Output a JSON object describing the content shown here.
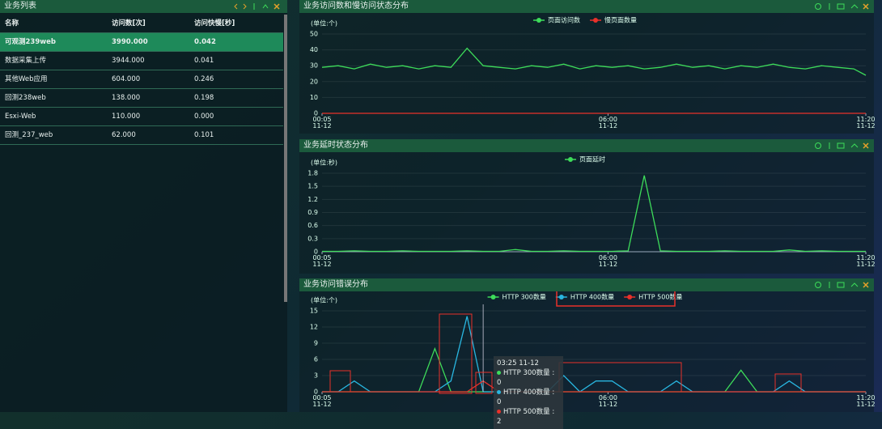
{
  "table": {
    "title": "业务列表",
    "columns": [
      "名称",
      "访问数[次]",
      "访问快慢[秒]"
    ],
    "rows": [
      [
        "可观测239web",
        "3990.000",
        "0.042"
      ],
      [
        "数据采集上传",
        "3944.000",
        "0.041"
      ],
      [
        "其他Web应用",
        "604.000",
        "0.246"
      ],
      [
        "回测238web",
        "138.000",
        "0.198"
      ],
      [
        "Esxi-Web",
        "110.000",
        "0.000"
      ],
      [
        "回测_237_web",
        "62.000",
        "0.101"
      ]
    ]
  },
  "chart_data": [
    {
      "type": "line",
      "title": "业务访问数和慢访问状态分布",
      "unit": "(单位:个)",
      "x": [
        5,
        25,
        45,
        65,
        85,
        105,
        125,
        145,
        165,
        185,
        205,
        225,
        245,
        265,
        285,
        305,
        325,
        345,
        365,
        385,
        405,
        425,
        445,
        465,
        485,
        505,
        525,
        545,
        565,
        585,
        605,
        625,
        645,
        665,
        680
      ],
      "xlim": [
        5,
        680
      ],
      "xticks": [
        {
          "value": 5,
          "label": "00:05\n11-12"
        },
        {
          "value": 360,
          "label": "06:00\n11-12"
        },
        {
          "value": 680,
          "label": "11:20\n11-12"
        }
      ],
      "ylim": [
        0,
        50
      ],
      "yticks": [
        0,
        10,
        20,
        30,
        40,
        50
      ],
      "grid": true,
      "series": [
        {
          "name": "页面访问数",
          "color": "#3ddc5a",
          "values": [
            29,
            30,
            28,
            31,
            29,
            30,
            28,
            30,
            29,
            41,
            30,
            29,
            28,
            30,
            29,
            31,
            28,
            30,
            29,
            30,
            28,
            29,
            31,
            29,
            30,
            28,
            30,
            29,
            31,
            29,
            28,
            30,
            29,
            28,
            24
          ]
        },
        {
          "name": "慢页面数量",
          "color": "#e8312a",
          "values": [
            0,
            0,
            0,
            0,
            0,
            0,
            0,
            0,
            0,
            0,
            0,
            0,
            0,
            0,
            0,
            0,
            0,
            0,
            0,
            0,
            0,
            0,
            0,
            0,
            0,
            0,
            0,
            0,
            0,
            0,
            0,
            0,
            0,
            0,
            0
          ]
        }
      ]
    },
    {
      "type": "line",
      "title": "业务延时状态分布",
      "unit": "(单位:秒)",
      "x": [
        5,
        25,
        45,
        65,
        85,
        105,
        125,
        145,
        165,
        185,
        205,
        225,
        245,
        265,
        285,
        305,
        325,
        345,
        365,
        385,
        405,
        425,
        445,
        465,
        485,
        505,
        525,
        545,
        565,
        585,
        605,
        625,
        645,
        665,
        680
      ],
      "xlim": [
        5,
        680
      ],
      "xticks": [
        {
          "value": 5,
          "label": "00:05\n11-12"
        },
        {
          "value": 360,
          "label": "06:00\n11-12"
        },
        {
          "value": 680,
          "label": "11:20\n11-12"
        }
      ],
      "ylim": [
        0,
        1.8
      ],
      "yticks": [
        0,
        0.3,
        0.6,
        0.9,
        1.2,
        1.5,
        1.8
      ],
      "grid": true,
      "series": [
        {
          "name": "页面延时",
          "color": "#3ddc5a",
          "values": [
            0.01,
            0.01,
            0.02,
            0.01,
            0.01,
            0.02,
            0.01,
            0.01,
            0.01,
            0.02,
            0.01,
            0.01,
            0.05,
            0.01,
            0.01,
            0.02,
            0.01,
            0.01,
            0.01,
            0.02,
            1.75,
            0.02,
            0.01,
            0.01,
            0.01,
            0.02,
            0.01,
            0.01,
            0.01,
            0.04,
            0.01,
            0.02,
            0.01,
            0.01,
            0.01
          ]
        }
      ]
    },
    {
      "type": "line",
      "title": "业务访问错误分布",
      "unit": "(单位:个)",
      "x": [
        5,
        25,
        45,
        65,
        85,
        105,
        125,
        145,
        165,
        185,
        205,
        225,
        245,
        265,
        285,
        305,
        325,
        345,
        365,
        385,
        405,
        425,
        445,
        465,
        485,
        505,
        525,
        545,
        565,
        585,
        605,
        625,
        645,
        665,
        680
      ],
      "xlim": [
        5,
        680
      ],
      "xticks": [
        {
          "value": 5,
          "label": "00:05\n11-12"
        },
        {
          "value": 360,
          "label": "06:00\n11-12"
        },
        {
          "value": 680,
          "label": "11:20\n11-12"
        }
      ],
      "ylim": [
        0,
        15
      ],
      "yticks": [
        0,
        3,
        6,
        9,
        12,
        15
      ],
      "grid": true,
      "series": [
        {
          "name": "HTTP 300数量",
          "color": "#3ddc5a",
          "values": [
            0,
            0,
            0,
            0,
            0,
            0,
            0,
            8,
            0,
            0,
            0,
            0,
            0,
            0,
            0,
            0,
            0,
            0,
            0,
            0,
            0,
            0,
            0,
            0,
            0,
            0,
            4,
            0,
            0,
            0,
            0,
            0,
            0,
            0,
            0
          ]
        },
        {
          "name": "HTTP 400数量",
          "color": "#29b6e0",
          "values": [
            0,
            0,
            2,
            0,
            0,
            0,
            0,
            0,
            2,
            14,
            0,
            0,
            0,
            0,
            0,
            3,
            0,
            2,
            2,
            0,
            0,
            0,
            2,
            0,
            0,
            0,
            0,
            0,
            0,
            2,
            0,
            0,
            0,
            0,
            0
          ]
        },
        {
          "name": "HTTP 500数量",
          "color": "#e8312a",
          "values": [
            0,
            0,
            0,
            0,
            0,
            0,
            0,
            0,
            0,
            0,
            2,
            0,
            0,
            0,
            0,
            0,
            0,
            0,
            0,
            0,
            0,
            0,
            0,
            0,
            0,
            0,
            0,
            0,
            0,
            0,
            0,
            0,
            0,
            0,
            0
          ]
        }
      ],
      "tooltip": {
        "x": 205,
        "title": "03:25 11-12",
        "lines": [
          "HTTP 300数量 : 0",
          "HTTP 400数量 : 0",
          "HTTP 500数量 : 2"
        ]
      }
    }
  ]
}
